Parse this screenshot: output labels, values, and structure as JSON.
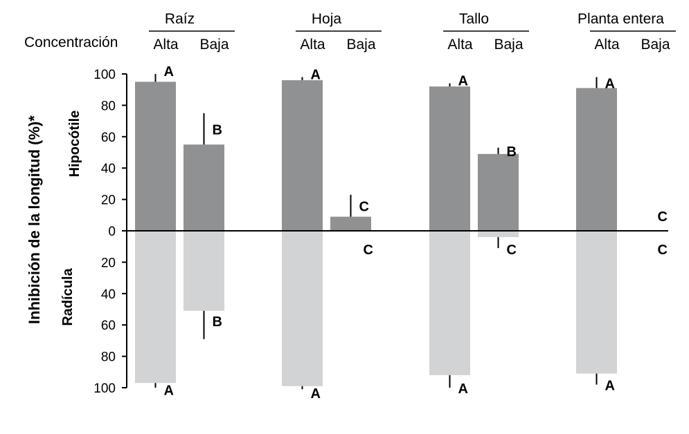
{
  "chart_data": {
    "type": "bar",
    "ylabel": "Inhibición de la longitud (%)*",
    "upper_label": "Hipocótile",
    "lower_label": "Radícula",
    "concentration_label": "Concentración",
    "yticks_upper": [
      0,
      20,
      40,
      60,
      80,
      100
    ],
    "yticks_lower": [
      20,
      40,
      60,
      80,
      100
    ],
    "ylim": [
      -100,
      100
    ],
    "colors": {
      "hipocotile": "#8f9193",
      "radicula": "#d2d3d5"
    },
    "groups": [
      {
        "name": "Raíz",
        "bars": [
          {
            "level": "Alta",
            "hipocotile": 95,
            "hipocotile_err": 5,
            "hipocotile_sig": "A",
            "radicula": 97,
            "radicula_err": 3,
            "radicula_sig": "A"
          },
          {
            "level": "Baja",
            "hipocotile": 55,
            "hipocotile_err": 20,
            "hipocotile_sig": "B",
            "radicula": 51,
            "radicula_err": 18,
            "radicula_sig": "B"
          }
        ]
      },
      {
        "name": "Hoja",
        "bars": [
          {
            "level": "Alta",
            "hipocotile": 96,
            "hipocotile_err": 2,
            "hipocotile_sig": "A",
            "radicula": 99,
            "radicula_err": 2,
            "radicula_sig": "A"
          },
          {
            "level": "Baja",
            "hipocotile": 9,
            "hipocotile_err": 14,
            "hipocotile_sig": "C",
            "radicula": 0,
            "radicula_err": 0,
            "radicula_sig": "C"
          }
        ]
      },
      {
        "name": "Tallo",
        "bars": [
          {
            "level": "Alta",
            "hipocotile": 92,
            "hipocotile_err": 2,
            "hipocotile_sig": "A",
            "radicula": 92,
            "radicula_err": 8,
            "radicula_sig": "A"
          },
          {
            "level": "Baja",
            "hipocotile": 49,
            "hipocotile_err": 4,
            "hipocotile_sig": "B",
            "radicula": 4,
            "radicula_err": 7,
            "radicula_sig": "C"
          }
        ]
      },
      {
        "name": "Planta entera",
        "bars": [
          {
            "level": "Alta",
            "hipocotile": 91,
            "hipocotile_err": 7,
            "hipocotile_sig": "A",
            "radicula": 91,
            "radicula_err": 7,
            "radicula_sig": "A"
          },
          {
            "level": "Baja",
            "hipocotile": 0,
            "hipocotile_err": 0,
            "hipocotile_sig": "C",
            "radicula": 0,
            "radicula_err": 0,
            "radicula_sig": "C"
          }
        ]
      }
    ]
  }
}
